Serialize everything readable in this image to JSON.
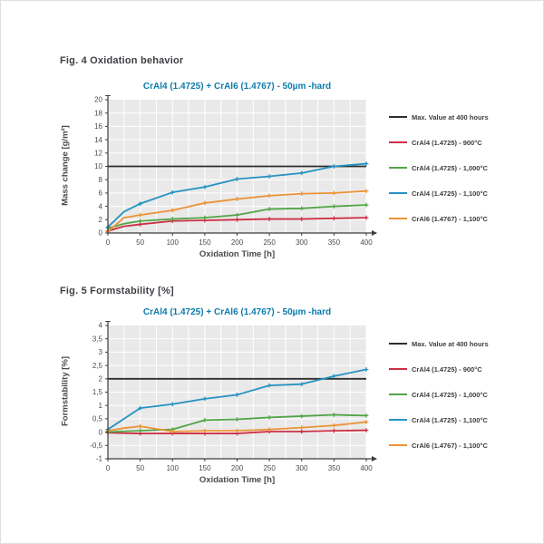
{
  "figures": [
    {
      "heading": "Fig. 4 Oxidation behavior"
    },
    {
      "heading": "Fig. 5 Formstability [%]"
    }
  ],
  "colors": {
    "title_accent": "#0c7cad",
    "max_line": "#2e2e2e",
    "plot_bg": "#e9e9e9",
    "grid": "#ffffff",
    "axis": "#3c3c3c",
    "red": "#cb2f44",
    "green": "#52a447",
    "blue": "#2492c3",
    "orange": "#ec9335"
  },
  "legend": {
    "items": [
      {
        "label": "Max. Value at 400 hours",
        "color": "#2e2e2e"
      },
      {
        "label": "CrAl4 (1.4725) - 900°C",
        "color": "#cb2f44"
      },
      {
        "label": "CrAl4 (1.4725) - 1,000°C",
        "color": "#52a447"
      },
      {
        "label": "CrAl4 (1.4725) - 1,100°C",
        "color": "#2492c3"
      },
      {
        "label": "CrAl6 (1.4767) - 1,100°C",
        "color": "#ec9335"
      }
    ]
  },
  "chart_data": [
    {
      "type": "line",
      "title": "CrAl4 (1.4725) + CrAl6 (1.4767) - 50µm -hard",
      "xlabel": "Oxidation Time [h]",
      "ylabel": "Mass change [g/m²]",
      "xlim": [
        0,
        400
      ],
      "ylim": [
        0,
        20
      ],
      "x_ticks": [
        0,
        50,
        100,
        150,
        200,
        250,
        300,
        350,
        400
      ],
      "y_ticks": [
        0,
        2,
        4,
        6,
        8,
        10,
        12,
        14,
        16,
        18,
        20
      ],
      "y_tick_labels": [
        "0",
        "2",
        "4",
        "6",
        "8",
        "10",
        "12",
        "14",
        "16",
        "18",
        "20"
      ],
      "x_grid_step": 25,
      "grid": true,
      "legend_position": "right",
      "max_value_line": 10,
      "max_value_label": "Max. Value at 400 hours",
      "x": [
        0,
        25,
        50,
        100,
        150,
        200,
        250,
        300,
        350,
        400
      ],
      "series": [
        {
          "name": "CrAl4 (1.4725) - 900°C",
          "color": "#cb2f44",
          "values": [
            0.3,
            1.0,
            1.3,
            1.8,
            1.9,
            2.0,
            2.1,
            2.1,
            2.2,
            2.3
          ]
        },
        {
          "name": "CrAl4 (1.4725) - 1,000°C",
          "color": "#52a447",
          "values": [
            0.7,
            1.4,
            1.8,
            2.1,
            2.3,
            2.7,
            3.6,
            3.7,
            4.0,
            4.2
          ]
        },
        {
          "name": "CrAl4 (1.4725) - 1,100°C",
          "color": "#2492c3",
          "values": [
            0.9,
            3.2,
            4.4,
            6.1,
            6.9,
            8.1,
            8.5,
            9.0,
            10.0,
            10.4
          ]
        },
        {
          "name": "CrAl6 (1.4767) - 1,100°C",
          "color": "#ec9335",
          "values": [
            0.2,
            2.3,
            2.7,
            3.4,
            4.5,
            5.1,
            5.6,
            5.9,
            6.0,
            6.3
          ]
        }
      ]
    },
    {
      "type": "line",
      "title": "CrAl4 (1.4725) + CrAl6 (1.4767) - 50µm -hard",
      "xlabel": "Oxidation Time [h]",
      "ylabel": "Formstability [%]",
      "xlim": [
        0,
        400
      ],
      "ylim": [
        -1,
        4
      ],
      "x_ticks": [
        0,
        50,
        100,
        150,
        200,
        250,
        300,
        350,
        400
      ],
      "y_ticks": [
        -1,
        -0.5,
        0,
        0.5,
        1,
        1.5,
        2,
        2.5,
        3,
        3.5,
        4
      ],
      "y_tick_labels": [
        "-1",
        "-0,5",
        "0",
        "0,5",
        "1",
        "1,5",
        "2",
        "2,5",
        "3",
        "3,5",
        "4"
      ],
      "x_grid_step": 25,
      "grid": true,
      "legend_position": "right",
      "max_value_line": 2,
      "max_value_label": "Max. Value at 400 hours",
      "x": [
        0,
        25,
        50,
        100,
        150,
        200,
        250,
        300,
        350,
        400
      ],
      "series": [
        {
          "name": "CrAl4 (1.4725) - 900°C",
          "color": "#cb2f44",
          "values": [
            -0.02,
            -0.04,
            -0.05,
            -0.05,
            -0.05,
            -0.05,
            0.02,
            0.02,
            0.05,
            0.07
          ]
        },
        {
          "name": "CrAl4 (1.4725) - 1,000°C",
          "color": "#52a447",
          "values": [
            0.0,
            0.03,
            0.05,
            0.1,
            0.45,
            0.48,
            0.55,
            0.6,
            0.65,
            0.62
          ]
        },
        {
          "name": "CrAl4 (1.4725) - 1,100°C",
          "color": "#2492c3",
          "values": [
            0.1,
            0.5,
            0.9,
            1.05,
            1.25,
            1.4,
            1.75,
            1.8,
            2.1,
            2.35
          ]
        },
        {
          "name": "CrAl6 (1.4767) - 1,100°C",
          "color": "#ec9335",
          "values": [
            0.05,
            0.15,
            0.22,
            0.02,
            0.05,
            0.05,
            0.1,
            0.17,
            0.25,
            0.38
          ]
        }
      ]
    }
  ]
}
